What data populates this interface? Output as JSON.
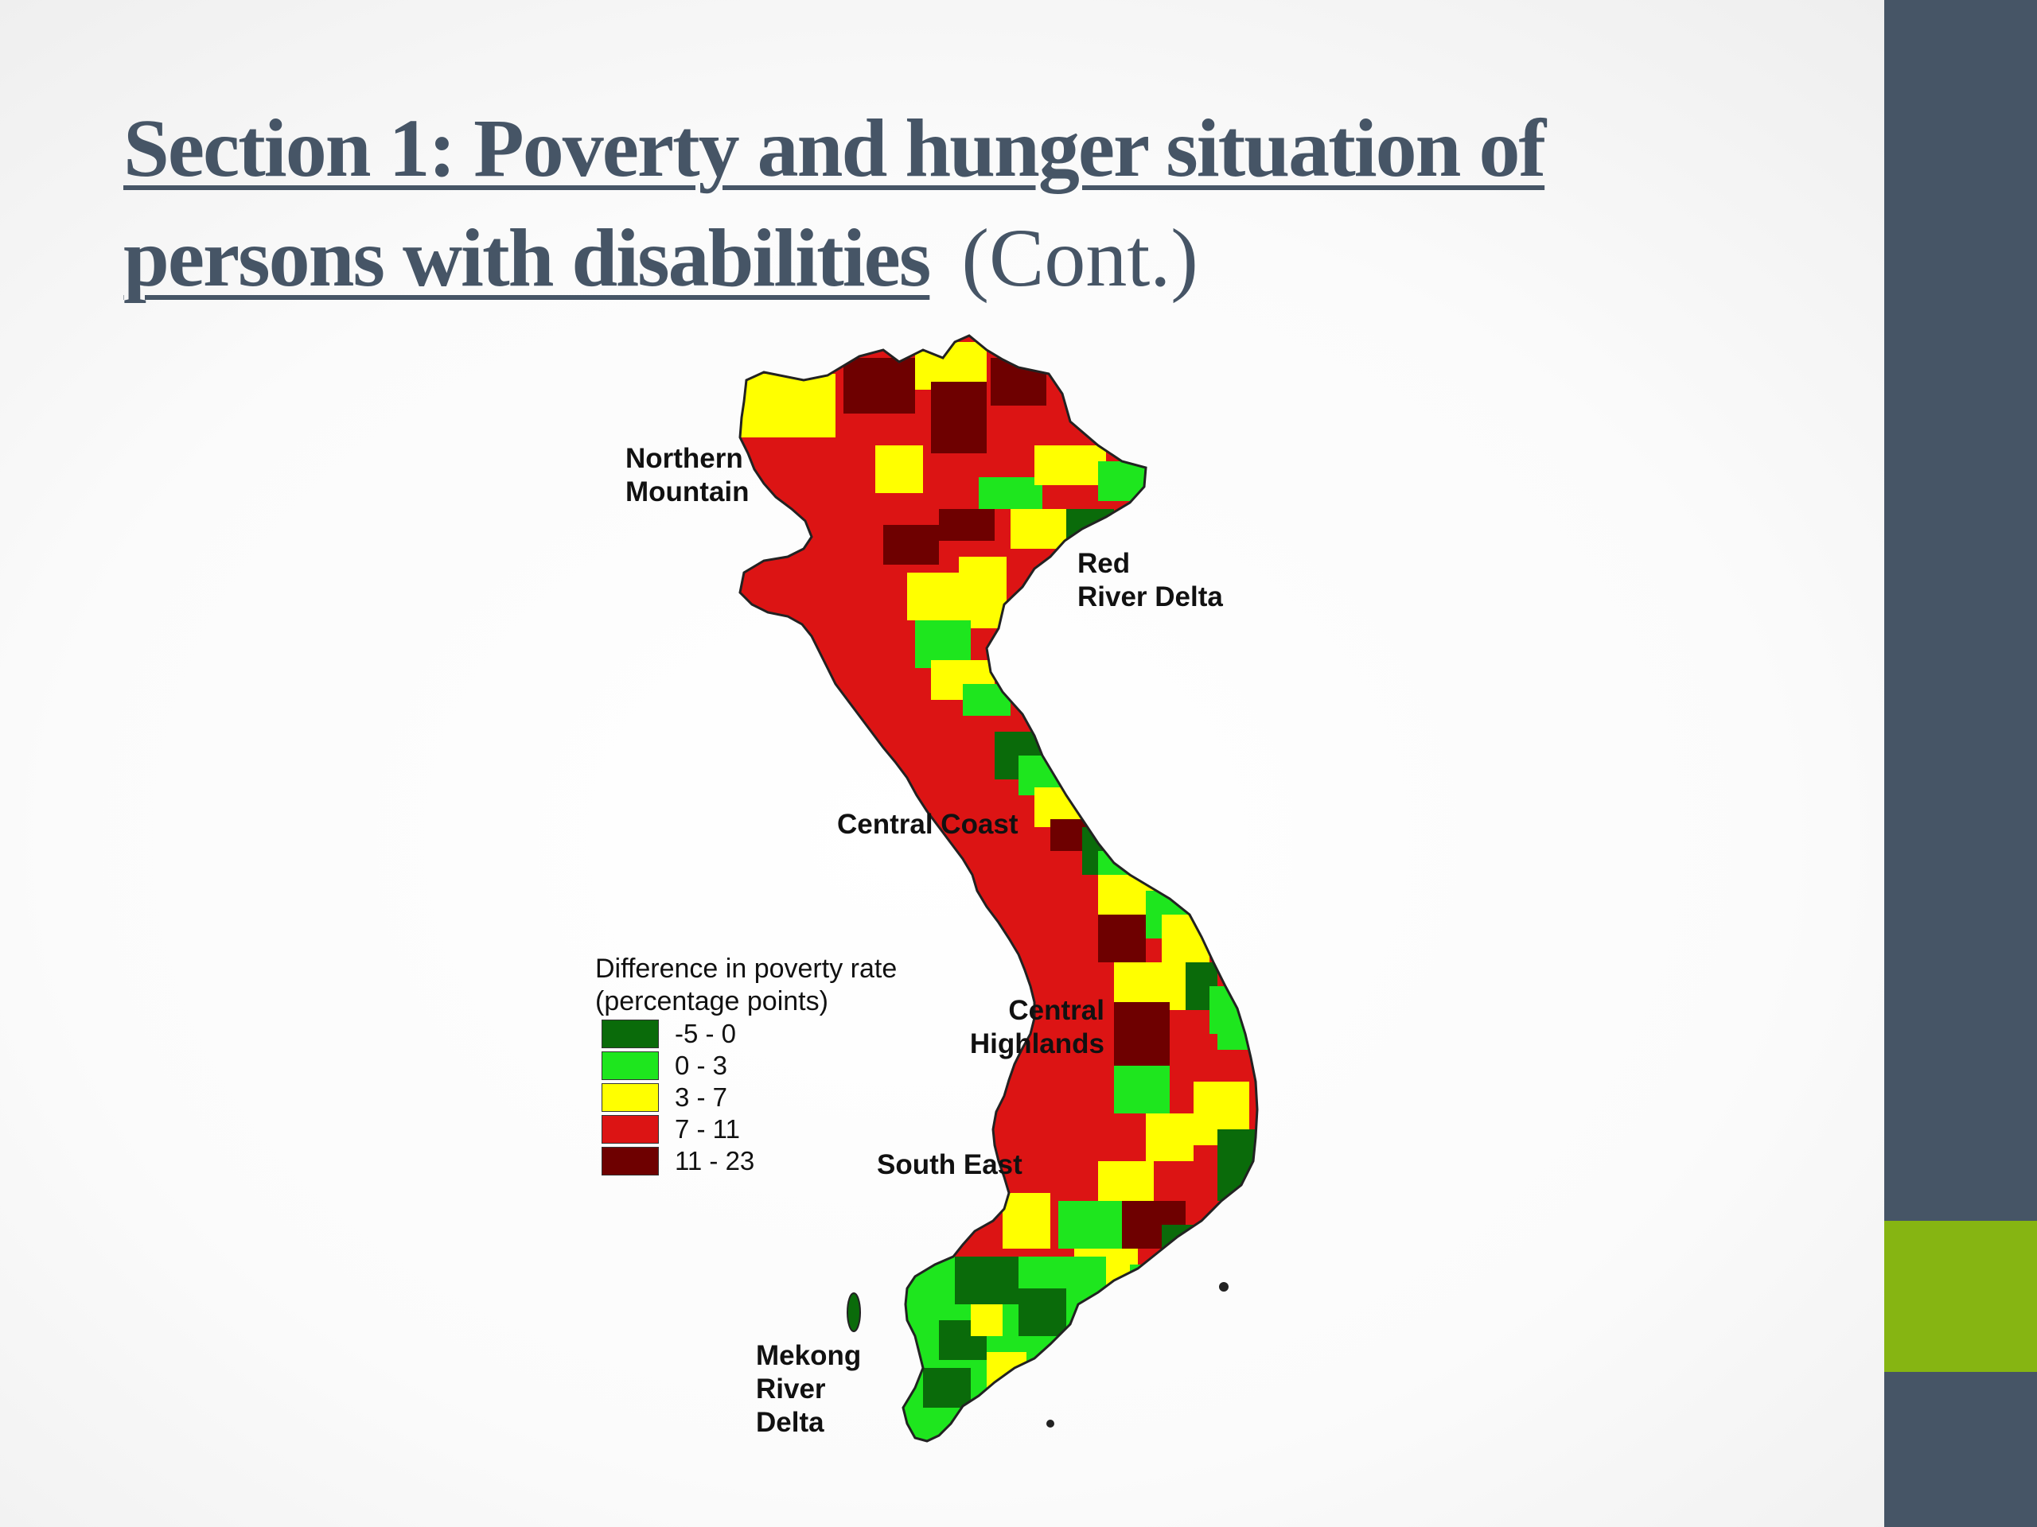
{
  "slide": {
    "title_underlined": "Section 1: Poverty and hunger situation of persons with disabilities",
    "title_suffix": "(Cont.)",
    "colors": {
      "sidebar": "#465566",
      "accent": "#86b512",
      "title": "#465566"
    }
  },
  "map": {
    "regions": [
      {
        "name": "Northern Mountain"
      },
      {
        "name": "Red River Delta"
      },
      {
        "name": "Central Coast"
      },
      {
        "name": "Central Highlands"
      },
      {
        "name": "South East"
      },
      {
        "name": "Mekong River Delta"
      }
    ],
    "label_texts": {
      "northern_mountain": "Northern\nMountain",
      "red_river_delta": "Red\nRiver Delta",
      "central_coast": "Central Coast",
      "central_highlands": "Central\nHighlands",
      "south_east": "South East",
      "mekong_river_delta": "Mekong\nRiver\nDelta"
    },
    "legend": {
      "title": "Difference in poverty rate\n(percentage points)",
      "classes": [
        {
          "label": "-5 - 0",
          "color": "#0a6b0a"
        },
        {
          "label": "0 - 3",
          "color": "#1ee61e"
        },
        {
          "label": "3 - 7",
          "color": "#ffff00"
        },
        {
          "label": "7 - 11",
          "color": "#dc1414"
        },
        {
          "label": "11 - 23",
          "color": "#6e0000"
        }
      ]
    }
  }
}
